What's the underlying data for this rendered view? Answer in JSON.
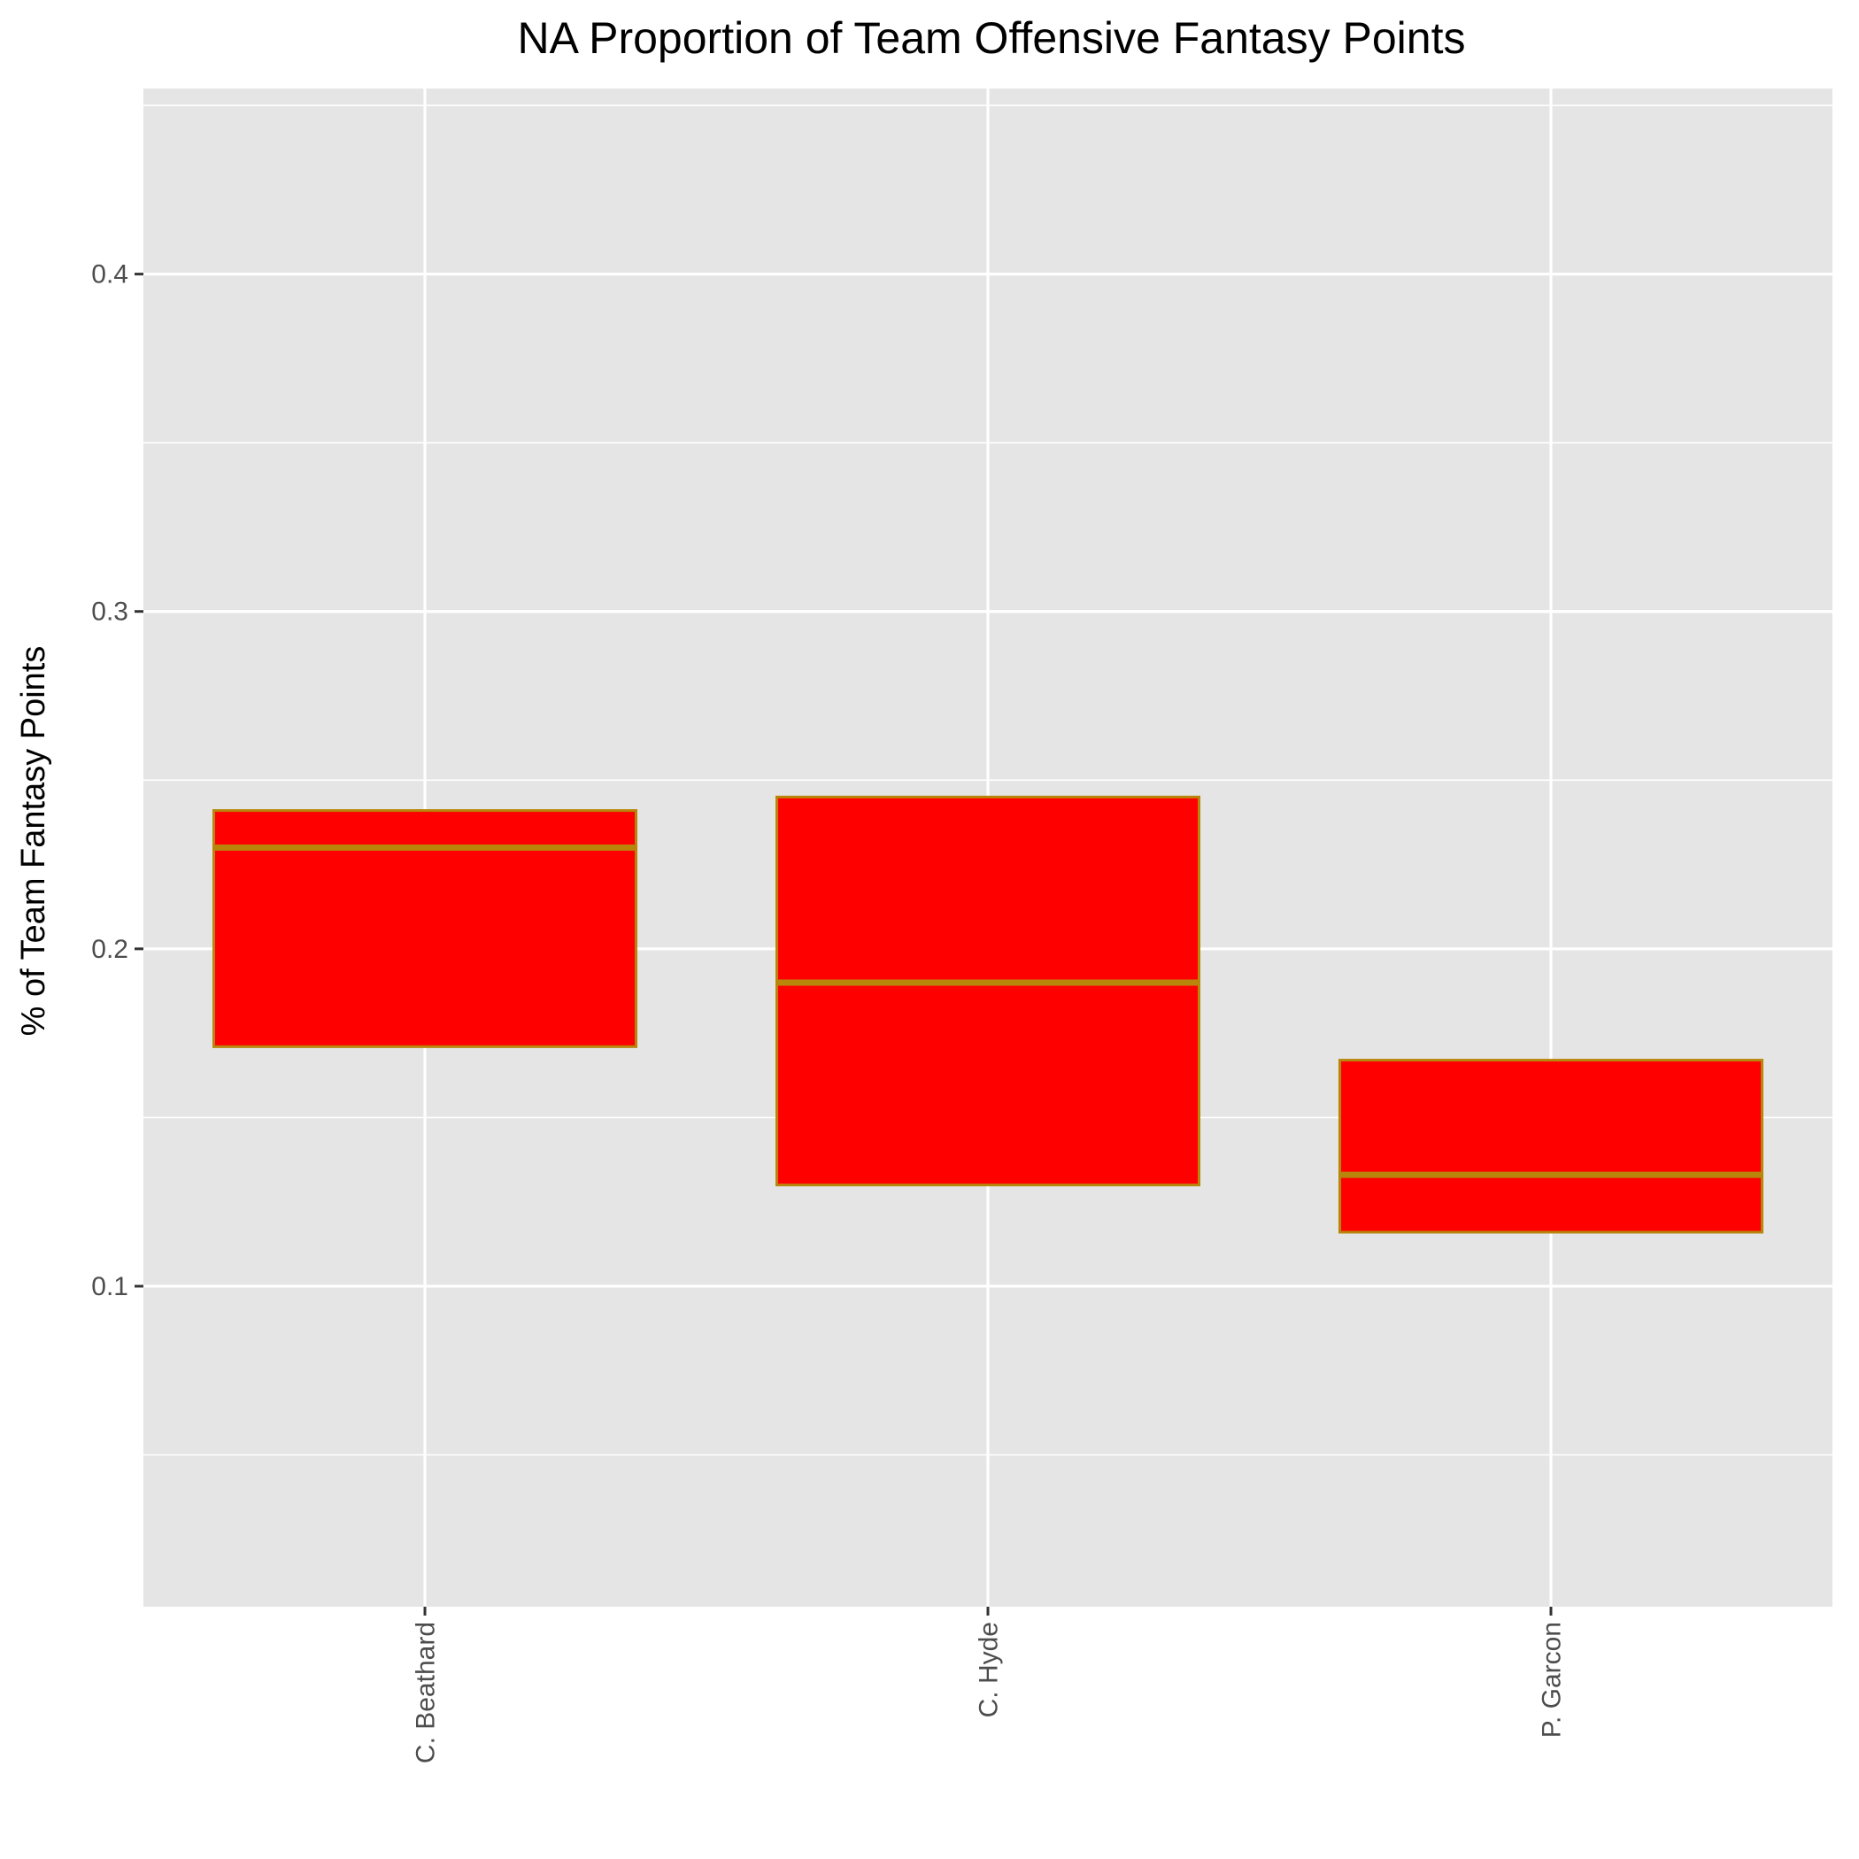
{
  "chart_data": {
    "type": "boxplot",
    "title": "NA Proportion of Team Offensive Fantasy Points",
    "xlabel": "",
    "ylabel": "% of Team Fantasy Points",
    "categories": [
      "C. Beathard",
      "C. Hyde",
      "P. Garcon"
    ],
    "boxes": [
      {
        "category": "C. Beathard",
        "q1": 0.171,
        "median": 0.23,
        "q3": 0.241
      },
      {
        "category": "C. Hyde",
        "q1": 0.13,
        "median": 0.19,
        "q3": 0.245
      },
      {
        "category": "P. Garcon",
        "q1": 0.116,
        "median": 0.133,
        "q3": 0.167
      }
    ],
    "ylim": [
      0.005,
      0.455
    ],
    "y_ticks": [
      0.1,
      0.2,
      0.3,
      0.4
    ],
    "y_tick_labels": [
      "0.1",
      "0.2",
      "0.3",
      "0.4"
    ],
    "x_tick_label_rotation": "vertical",
    "grid": true,
    "legend": "none",
    "colors": {
      "panel_background": "#e5e5e5",
      "grid": "#ffffff",
      "box_fill": "#ff0000",
      "box_outline": "#b8860b",
      "tick_label": "#4d4d4d",
      "tick_mark": "#333333"
    }
  }
}
